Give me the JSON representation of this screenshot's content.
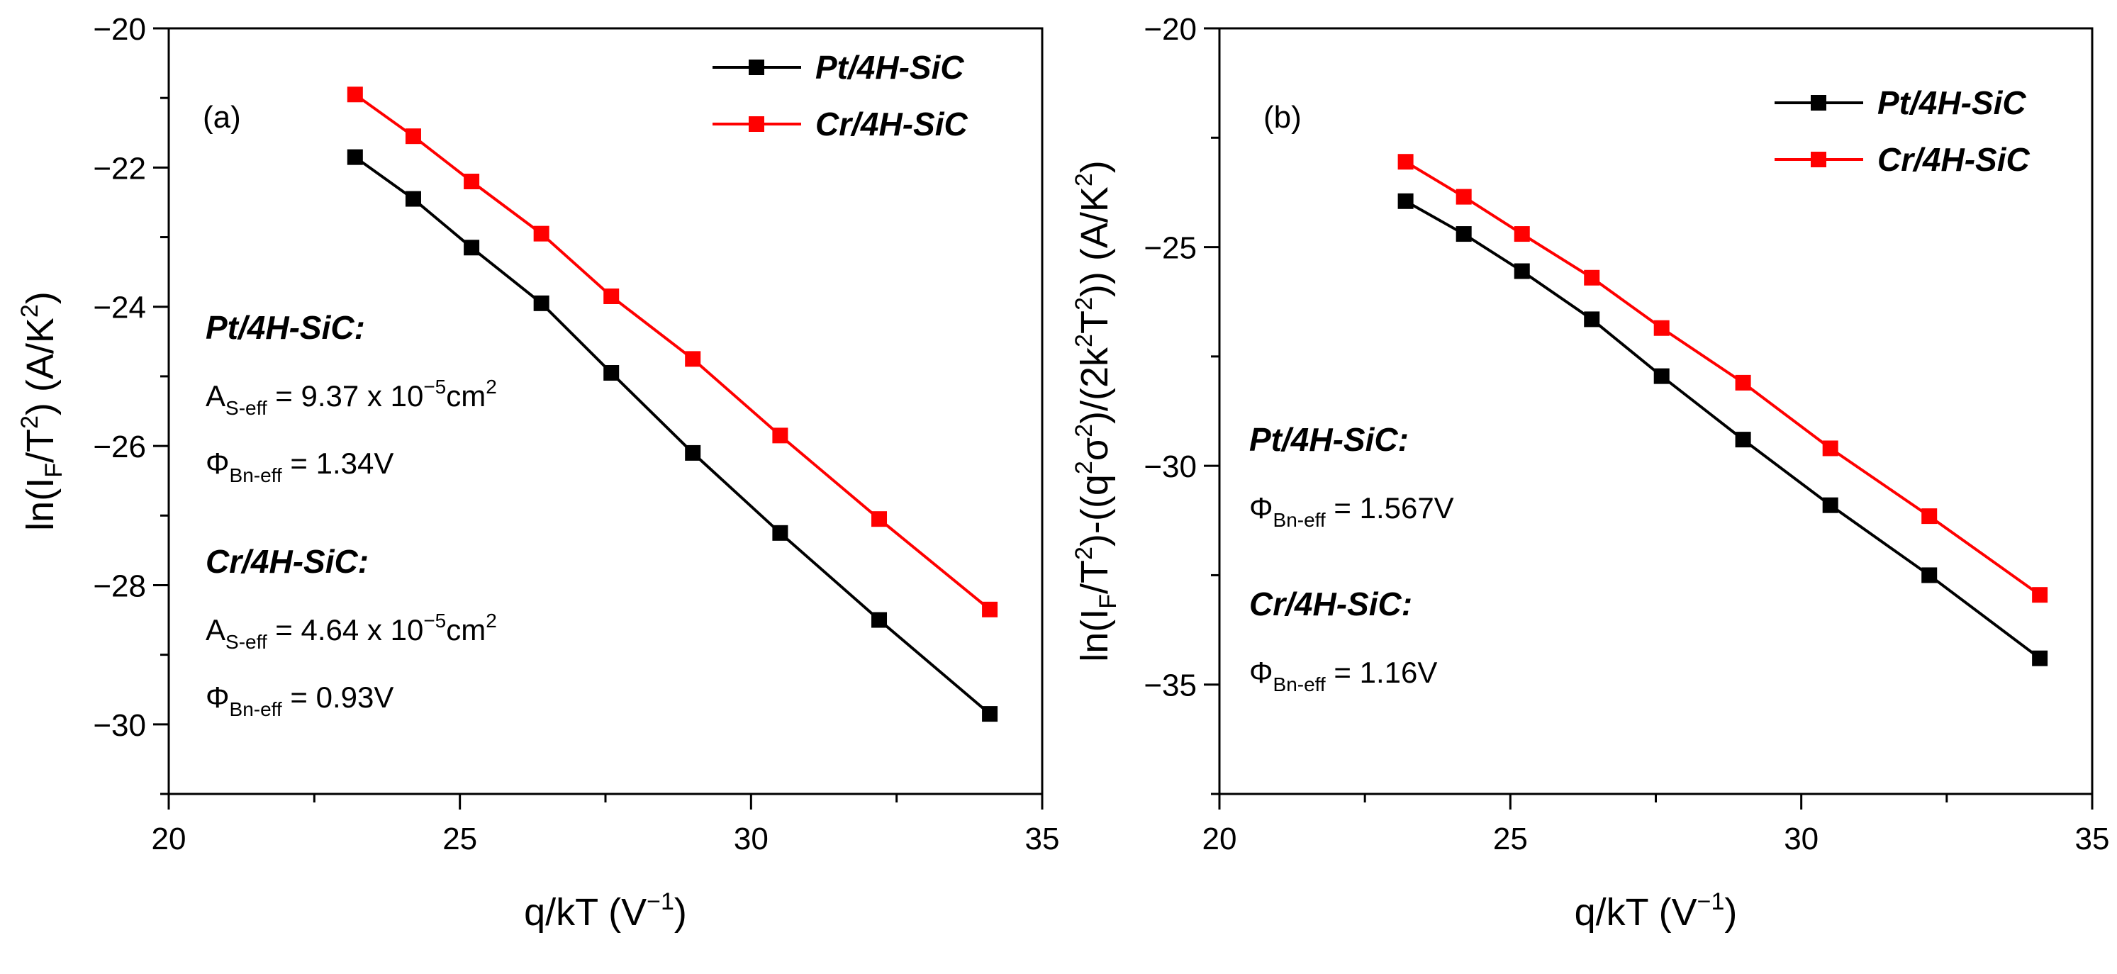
{
  "chart_data": [
    {
      "type": "line",
      "panel_label": "(a)",
      "xlabel": "q/kT (V−1)",
      "ylabel": "ln(IF/T2) (A/K2)",
      "xlim": [
        20,
        35
      ],
      "ylim": [
        -31,
        -20
      ],
      "x_ticks": [
        20,
        25,
        30,
        35
      ],
      "y_ticks": [
        -20,
        -22,
        -24,
        -26,
        -28,
        -30
      ],
      "x_tick_labels": [
        "20",
        "25",
        "30",
        "35"
      ],
      "y_tick_labels": [
        "−20",
        "−22",
        "−24",
        "−26",
        "−28",
        "−30"
      ],
      "legend_position": "top-right",
      "x": [
        23.2,
        24.2,
        25.2,
        26.4,
        27.6,
        29.0,
        30.5,
        32.2,
        34.1
      ],
      "series": [
        {
          "name": "Pt/4H-SiC",
          "color": "#000000",
          "values": [
            -21.85,
            -22.45,
            -23.15,
            -23.95,
            -24.95,
            -26.1,
            -27.25,
            -28.5,
            -29.85
          ]
        },
        {
          "name": "Cr/4H-SiC",
          "color": "#ff0000",
          "values": [
            -20.95,
            -21.55,
            -22.2,
            -22.95,
            -23.85,
            -24.75,
            -25.85,
            -27.05,
            -28.35
          ]
        }
      ],
      "annotations": [
        {
          "title": "Pt/4H-SiC:",
          "lines": [
            {
              "symbol": "A",
              "sub": "S-eff",
              "value": " = 9.37 x 10",
              "sup": "−5",
              "unit": "cm",
              "unit_sup": "2"
            },
            {
              "symbol": "Φ",
              "sub": "Bn-eff",
              "value": " = 1.34V",
              "sup": "",
              "unit": "",
              "unit_sup": ""
            }
          ]
        },
        {
          "title": "Cr/4H-SiC:",
          "lines": [
            {
              "symbol": "A",
              "sub": "S-eff",
              "value": " = 4.64 x 10",
              "sup": "−5",
              "unit": "cm",
              "unit_sup": "2"
            },
            {
              "symbol": "Φ",
              "sub": "Bn-eff",
              "value": " = 0.93V",
              "sup": "",
              "unit": "",
              "unit_sup": ""
            }
          ]
        }
      ]
    },
    {
      "type": "line",
      "panel_label": "(b)",
      "xlabel": "q/kT (V−1)",
      "ylabel": "ln(IF/T2)-((q2σ2)/(2k2T2)) (A/K2)",
      "xlim": [
        20,
        35
      ],
      "ylim": [
        -37.5,
        -20
      ],
      "x_ticks": [
        20,
        25,
        30,
        35
      ],
      "y_ticks": [
        -20,
        -25,
        -30,
        -35
      ],
      "x_tick_labels": [
        "20",
        "25",
        "30",
        "35"
      ],
      "y_tick_labels": [
        "−20",
        "−25",
        "−30",
        "−35"
      ],
      "legend_position": "top-right",
      "x": [
        23.2,
        24.2,
        25.2,
        26.4,
        27.6,
        29.0,
        30.5,
        32.2,
        34.1
      ],
      "series": [
        {
          "name": "Pt/4H-SiC",
          "color": "#000000",
          "values": [
            -23.95,
            -24.7,
            -25.55,
            -26.65,
            -27.95,
            -29.4,
            -30.9,
            -32.5,
            -34.4
          ]
        },
        {
          "name": "Cr/4H-SiC",
          "color": "#ff0000",
          "values": [
            -23.05,
            -23.85,
            -24.7,
            -25.7,
            -26.85,
            -28.1,
            -29.6,
            -31.15,
            -32.95
          ]
        }
      ],
      "annotations": [
        {
          "title": "Pt/4H-SiC:",
          "lines": [
            {
              "symbol": "Φ",
              "sub": "Bn-eff",
              "value": " = 1.567V",
              "sup": "",
              "unit": "",
              "unit_sup": ""
            }
          ]
        },
        {
          "title": "Cr/4H-SiC:",
          "lines": [
            {
              "symbol": "Φ",
              "sub": "Bn-eff",
              "value": " = 1.16V",
              "sup": "",
              "unit": "",
              "unit_sup": ""
            }
          ]
        }
      ]
    }
  ]
}
